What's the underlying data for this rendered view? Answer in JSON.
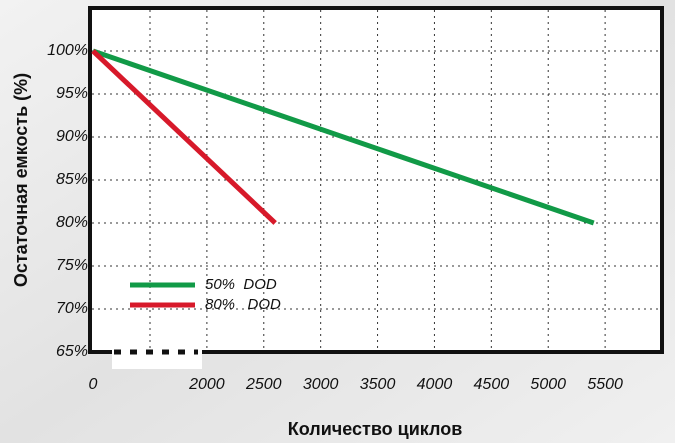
{
  "chart_data": {
    "type": "line",
    "x_label": "Количество циклов",
    "y_label": "Остаточная емкость (%)",
    "series": [
      {
        "name": "50%  DOD",
        "color": "#119a47",
        "x": [
          0,
          5400
        ],
        "values": [
          100,
          80
        ]
      },
      {
        "name": "80%   DOD",
        "color": "#d7192a",
        "x": [
          0,
          2600
        ],
        "values": [
          100,
          80
        ]
      }
    ],
    "xlim": [
      0,
      6000
    ],
    "axis_break": [
      0,
      1500
    ],
    "xticks": [
      0,
      2000,
      2500,
      3000,
      3500,
      4000,
      4500,
      5000,
      5500
    ],
    "ylim": [
      65,
      105
    ],
    "yticks": [
      {
        "value": 65,
        "label": "65%"
      },
      {
        "value": 70,
        "label": "70%"
      },
      {
        "value": 75,
        "label": "75%"
      },
      {
        "value": 80,
        "label": "80%"
      },
      {
        "value": 85,
        "label": "85%"
      },
      {
        "value": 90,
        "label": "90%"
      },
      {
        "value": 95,
        "label": "95%"
      },
      {
        "value": 100,
        "label": "100%"
      }
    ],
    "grid": true,
    "legend": "lower left"
  }
}
